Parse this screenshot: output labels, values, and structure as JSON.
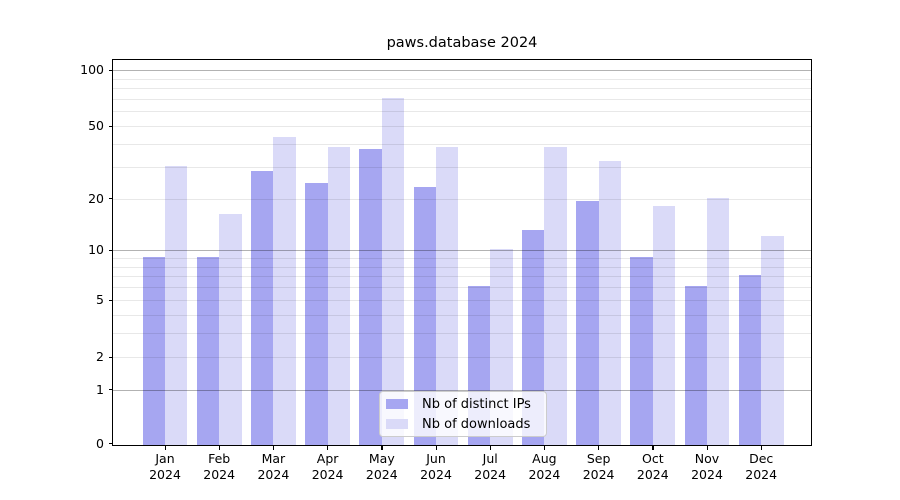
{
  "chart_data": {
    "type": "bar",
    "title": "paws.database 2024",
    "categories": [
      "Jan 2024",
      "Feb 2024",
      "Mar 2024",
      "Apr 2024",
      "May 2024",
      "Jun 2024",
      "Jul 2024",
      "Aug 2024",
      "Sep 2024",
      "Oct 2024",
      "Nov 2024",
      "Dec 2024"
    ],
    "series": [
      {
        "name": "Nb of distinct IPs",
        "color": "#a6a6f1",
        "values": [
          9,
          9,
          28,
          24,
          37,
          23,
          6,
          13,
          19,
          9,
          6,
          7
        ]
      },
      {
        "name": "Nb of downloads",
        "color": "#dadaf8",
        "values": [
          30,
          16,
          43,
          38,
          70,
          38,
          10,
          38,
          32,
          18,
          20,
          12
        ]
      }
    ],
    "xlabel": "",
    "ylabel": "",
    "yscale": "log-like",
    "ylim": [
      0,
      115
    ],
    "y_ticks": [
      0,
      1,
      2,
      5,
      10,
      20,
      50,
      100
    ],
    "y_major_ticks": [
      1,
      10,
      100
    ],
    "y_minor_gridlines": [
      3,
      4,
      6,
      7,
      8,
      9,
      30,
      40,
      60,
      70,
      80,
      90
    ],
    "grid": true,
    "legend_position": "lower center"
  },
  "colors": {
    "background": "#ffffff",
    "axis": "#000000",
    "grid_major": "rgba(0,0,0,0.30)",
    "grid_minor": "rgba(0,0,0,0.09)",
    "legend_border": "#cccccc",
    "text": "#000000"
  }
}
